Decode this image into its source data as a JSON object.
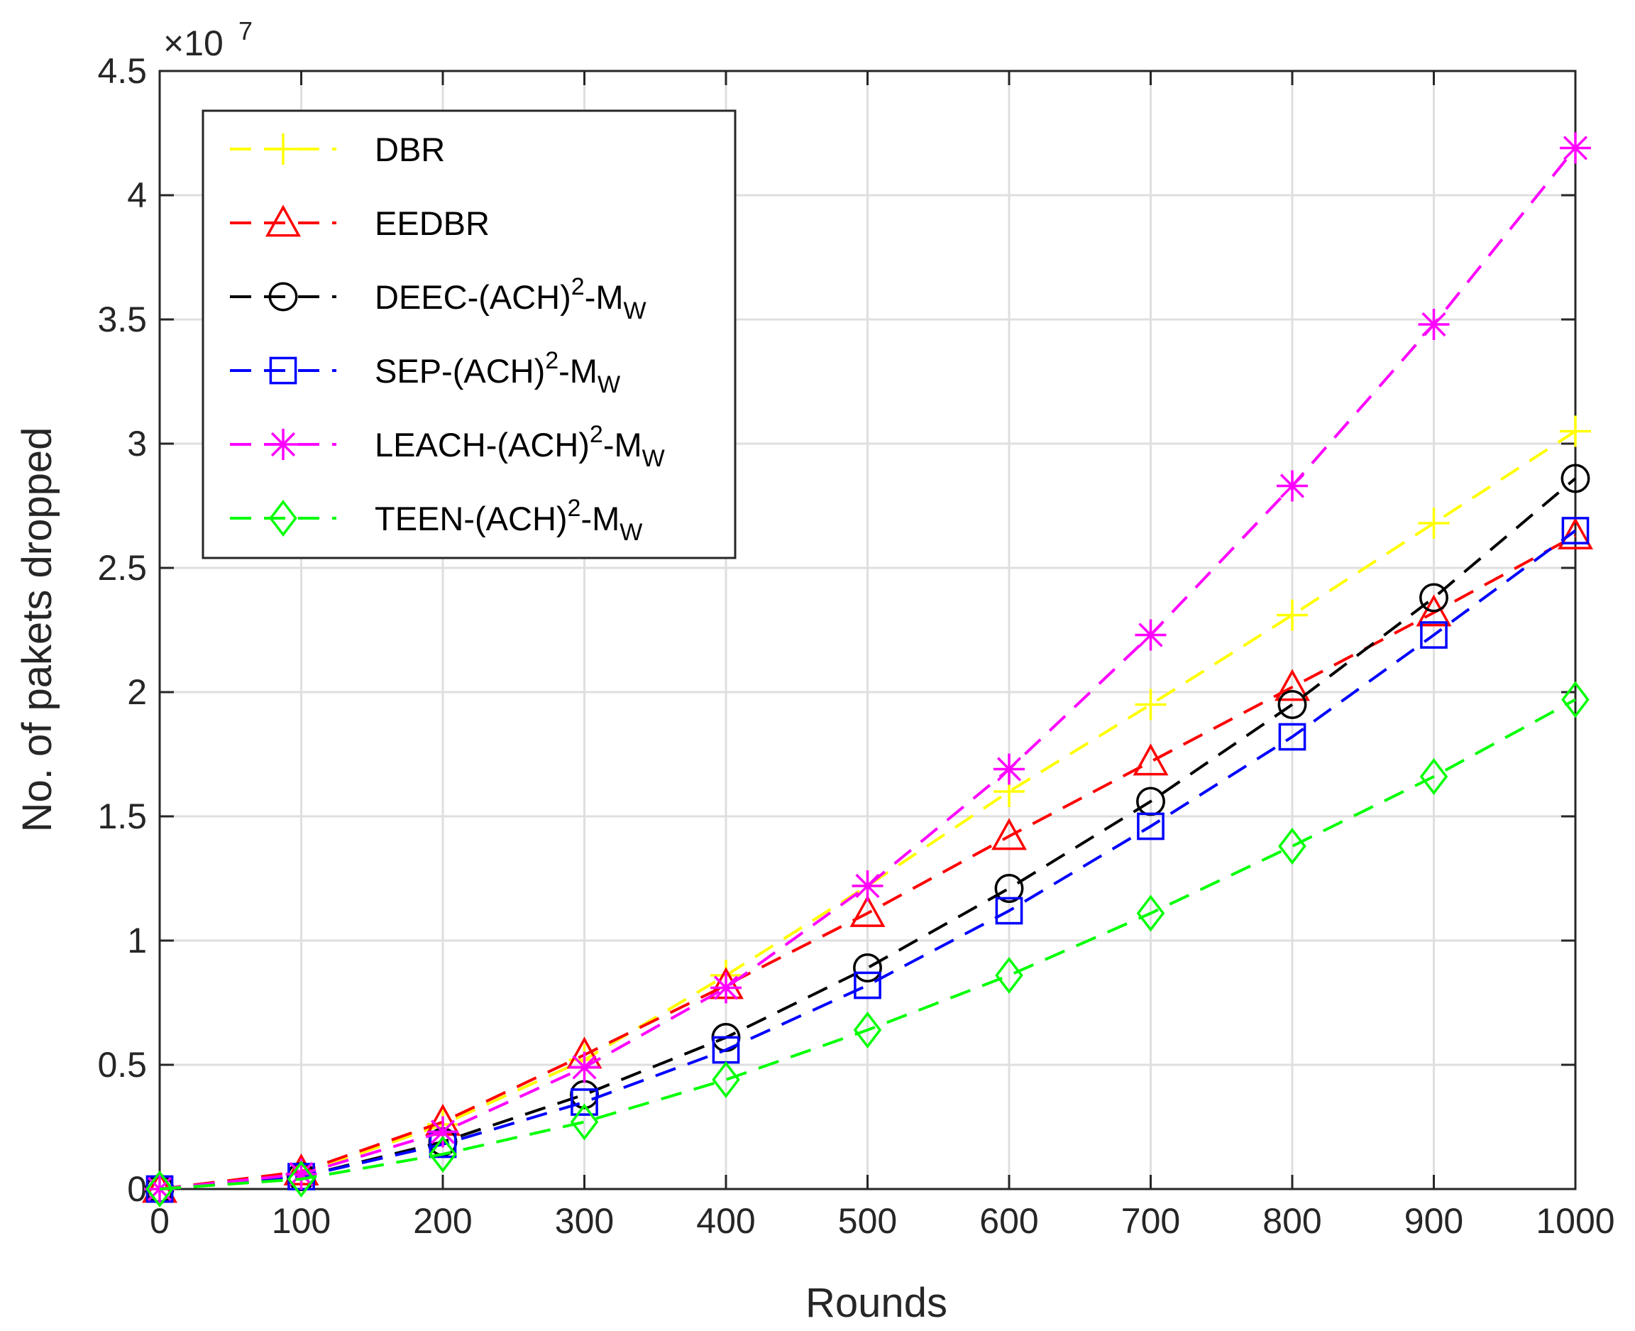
{
  "chart_data": {
    "type": "line",
    "title": "",
    "xlabel": "Rounds",
    "ylabel": "No. of pakets dropped",
    "y_exponent_label": "×10",
    "y_exponent_power": "7",
    "y_scale": 10000000,
    "xlim": [
      0,
      1000
    ],
    "ylim": [
      0,
      4.5
    ],
    "x_ticks": [
      "0",
      "100",
      "200",
      "300",
      "400",
      "500",
      "600",
      "700",
      "800",
      "900",
      "1000"
    ],
    "y_ticks": [
      "0",
      "0.5",
      "1",
      "1.5",
      "2",
      "2.5",
      "3",
      "3.5",
      "4",
      "4.5"
    ],
    "grid": true,
    "legend_position": "top-left",
    "x": [
      0,
      100,
      200,
      300,
      400,
      500,
      600,
      700,
      800,
      900,
      1000
    ],
    "series": [
      {
        "legend_label": "DBR",
        "label_sup": "",
        "label_rest": "",
        "label_sub": "",
        "color": "#FFFF00",
        "marker": "plus",
        "values": [
          0.0,
          0.06,
          0.26,
          0.52,
          0.86,
          1.22,
          1.6,
          1.95,
          2.31,
          2.68,
          3.05
        ]
      },
      {
        "legend_label": "EEDBR",
        "label_sup": "",
        "label_rest": "",
        "label_sub": "",
        "color": "#FF0000",
        "marker": "triangle",
        "values": [
          0.0,
          0.07,
          0.27,
          0.54,
          0.82,
          1.11,
          1.42,
          1.72,
          2.02,
          2.32,
          2.63
        ]
      },
      {
        "legend_label": "DEEC-(ACH)",
        "label_sup": "2",
        "label_rest": "-M",
        "label_sub": "W",
        "color": "#000000",
        "marker": "circle",
        "values": [
          0.0,
          0.05,
          0.19,
          0.38,
          0.61,
          0.89,
          1.21,
          1.56,
          1.95,
          2.38,
          2.86
        ]
      },
      {
        "legend_label": "SEP-(ACH)",
        "label_sup": "2",
        "label_rest": "-M",
        "label_sub": "W",
        "color": "#0000FF",
        "marker": "square",
        "values": [
          0.0,
          0.05,
          0.18,
          0.35,
          0.56,
          0.82,
          1.12,
          1.46,
          1.82,
          2.23,
          2.65
        ]
      },
      {
        "legend_label": "LEACH-(ACH)",
        "label_sup": "2",
        "label_rest": "-M",
        "label_sub": "W",
        "color": "#FF00FF",
        "marker": "star",
        "values": [
          0.0,
          0.06,
          0.23,
          0.49,
          0.81,
          1.22,
          1.69,
          2.23,
          2.83,
          3.48,
          4.19
        ]
      },
      {
        "legend_label": "TEEN-(ACH)",
        "label_sup": "2",
        "label_rest": "-M",
        "label_sub": "W",
        "color": "#00FF00",
        "marker": "diamond",
        "values": [
          0.0,
          0.04,
          0.14,
          0.27,
          0.44,
          0.64,
          0.86,
          1.11,
          1.38,
          1.66,
          1.97
        ]
      }
    ]
  }
}
